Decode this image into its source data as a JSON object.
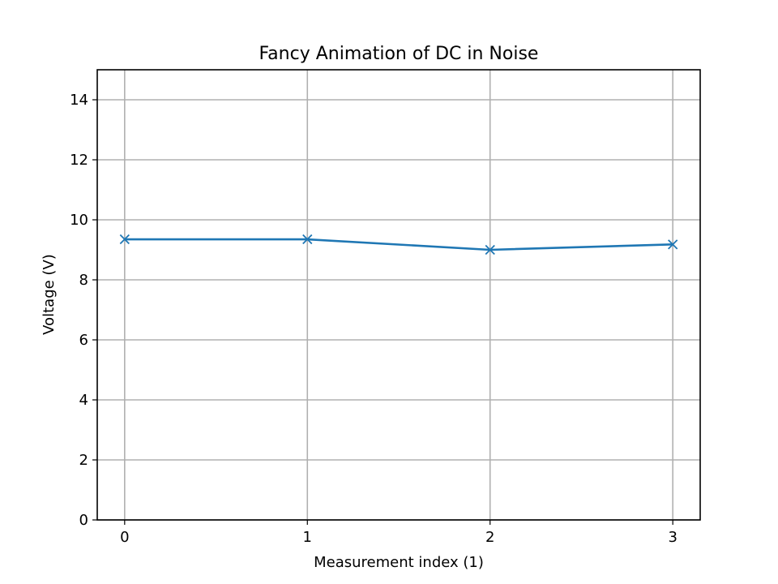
{
  "chart_data": {
    "type": "line",
    "title": "Fancy Animation of DC in Noise",
    "xlabel": "Measurement index (1)",
    "ylabel": "Voltage (V)",
    "xlim": [
      -0.15,
      3.15
    ],
    "ylim": [
      0,
      15
    ],
    "xticks": [
      "0",
      "1",
      "2",
      "3"
    ],
    "yticks": [
      "0",
      "2",
      "4",
      "6",
      "8",
      "10",
      "12",
      "14"
    ],
    "grid": true,
    "marker": "x",
    "series": [
      {
        "x": [
          0,
          1,
          2,
          3
        ],
        "values": [
          9.35,
          9.35,
          9.0,
          9.18
        ],
        "color": "#1f77b4"
      }
    ]
  }
}
